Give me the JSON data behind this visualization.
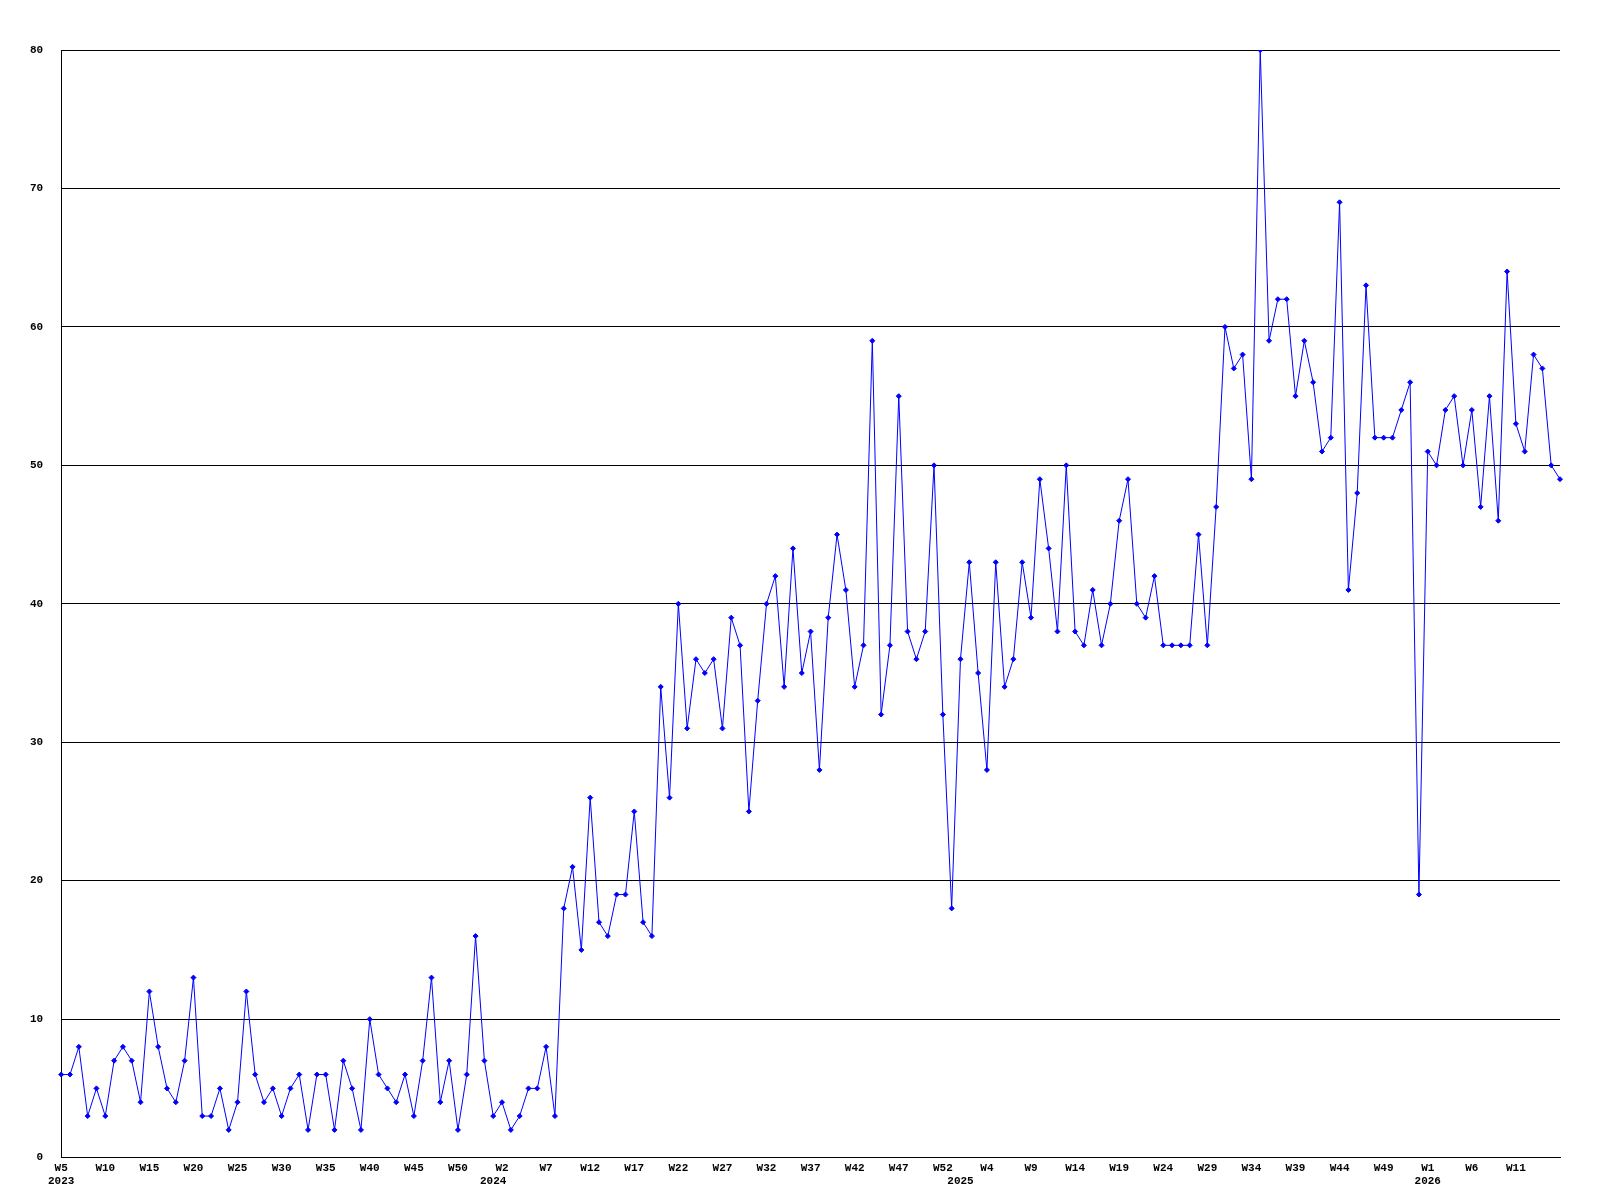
{
  "chart_data": {
    "type": "line",
    "categories": [
      "W5\n2023",
      null,
      null,
      null,
      null,
      "W10",
      null,
      null,
      null,
      null,
      "W15",
      null,
      null,
      null,
      null,
      "W20",
      null,
      null,
      null,
      null,
      "W25",
      null,
      null,
      null,
      null,
      "W30",
      null,
      null,
      null,
      null,
      "W35",
      null,
      null,
      null,
      null,
      "W40",
      null,
      null,
      null,
      null,
      "W45",
      null,
      null,
      null,
      null,
      "W50",
      null,
      null,
      null,
      "\n2024",
      "W2",
      null,
      null,
      null,
      null,
      "W7",
      null,
      null,
      null,
      null,
      "W12",
      null,
      null,
      null,
      null,
      "W17",
      null,
      null,
      null,
      null,
      "W22",
      null,
      null,
      null,
      null,
      "W27",
      null,
      null,
      null,
      null,
      "W32",
      null,
      null,
      null,
      null,
      "W37",
      null,
      null,
      null,
      null,
      "W42",
      null,
      null,
      null,
      null,
      "W47",
      null,
      null,
      null,
      null,
      "W52",
      null,
      "\n2025",
      null,
      null,
      "W4",
      null,
      null,
      null,
      null,
      "W9",
      null,
      null,
      null,
      null,
      "W14",
      null,
      null,
      null,
      null,
      "W19",
      null,
      null,
      null,
      null,
      "W24",
      null,
      null,
      null,
      null,
      "W29",
      null,
      null,
      null,
      null,
      "W34",
      null,
      null,
      null,
      null,
      "W39",
      null,
      null,
      null,
      null,
      "W44",
      null,
      null,
      null,
      null,
      "W49",
      null,
      null,
      null,
      null,
      "W1\n2026",
      null,
      null,
      null,
      null,
      "W6",
      null,
      null,
      null,
      null,
      "W11",
      null,
      null,
      null,
      null,
      null
    ],
    "series": [
      {
        "color": "#0000ff",
        "values": [
          6,
          6,
          8,
          3,
          5,
          3,
          7,
          8,
          7,
          4,
          12,
          8,
          5,
          4,
          7,
          13,
          3,
          3,
          5,
          2,
          4,
          12,
          6,
          4,
          5,
          3,
          5,
          6,
          2,
          6,
          6,
          2,
          7,
          5,
          2,
          10,
          6,
          5,
          4,
          6,
          3,
          7,
          13,
          4,
          7,
          2,
          6,
          16,
          7,
          3,
          4,
          2,
          3,
          5,
          5,
          8,
          3,
          18,
          21,
          15,
          26,
          17,
          16,
          19,
          19,
          25,
          17,
          16,
          34,
          26,
          40,
          31,
          36,
          35,
          36,
          31,
          39,
          37,
          25,
          33,
          40,
          42,
          34,
          44,
          35,
          38,
          28,
          39,
          45,
          41,
          34,
          37,
          59,
          32,
          37,
          55,
          38,
          36,
          38,
          50,
          32,
          18,
          36,
          43,
          35,
          28,
          43,
          34,
          36,
          43,
          39,
          49,
          44,
          38,
          50,
          38,
          37,
          41,
          37,
          40,
          46,
          49,
          40,
          39,
          42,
          37,
          37,
          37,
          37,
          45,
          37,
          47,
          60,
          57,
          58,
          49,
          80,
          59,
          62,
          62,
          55,
          59,
          56,
          51,
          52,
          69,
          41,
          48,
          63,
          52,
          52,
          52,
          54,
          56,
          19,
          51,
          50,
          54,
          55,
          50,
          54,
          47,
          55,
          46,
          64,
          53,
          51,
          58,
          57,
          50,
          49
        ]
      }
    ],
    "ylim": [
      0,
      80
    ],
    "yticks": [
      0,
      10,
      20,
      30,
      40,
      50,
      60,
      70,
      80
    ],
    "grid": "y",
    "marker": "diamond"
  }
}
